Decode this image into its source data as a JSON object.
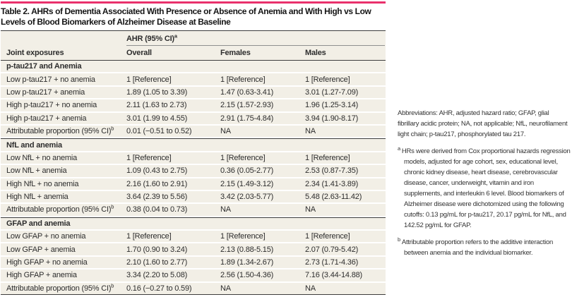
{
  "table": {
    "title": "Table 2. AHRs of Dementia Associated With Presence or Absence of Anemia and With High vs Low Levels of Blood Biomarkers of Alzheimer Disease at Baseline",
    "header": {
      "group_label": "AHR (95% CI)",
      "group_sup": "a",
      "col1": "Joint exposures",
      "columns": [
        "Overall",
        "Females",
        "Males"
      ]
    },
    "sections": [
      {
        "name": "p-tau217 and Anemia",
        "rows": [
          {
            "label": "Low p-tau217 + no anemia",
            "sup": "",
            "overall": "1 [Reference]",
            "females": "1 [Reference]",
            "males": "1 [Reference]"
          },
          {
            "label": "Low p-tau217 + anemia",
            "sup": "",
            "overall": "1.89 (1.05 to 3.39)",
            "females": "1.47 (0.63-3.41)",
            "males": "3.01 (1.27-7.09)"
          },
          {
            "label": "High p-tau217 + no anemia",
            "sup": "",
            "overall": "2.11 (1.63 to 2.73)",
            "females": "2.15 (1.57-2.93)",
            "males": "1.96 (1.25-3.14)"
          },
          {
            "label": "High p-tau217 + anemia",
            "sup": "",
            "overall": "3.01 (1.99 to 4.55)",
            "females": "2.91 (1.75-4.84)",
            "males": "3.94 (1.90-8.17)"
          },
          {
            "label": "Attributable proportion (95% CI)",
            "sup": "b",
            "overall": "0.01 (−0.51 to 0.52)",
            "females": "NA",
            "males": "NA"
          }
        ]
      },
      {
        "name": "NfL and anemia",
        "rows": [
          {
            "label": "Low NfL + no anemia",
            "sup": "",
            "overall": "1 [Reference]",
            "females": "1 [Reference]",
            "males": "1 [Reference]"
          },
          {
            "label": "Low NfL + anemia",
            "sup": "",
            "overall": "1.09 (0.43 to 2.75)",
            "females": "0.36 (0.05-2.77)",
            "males": "2.53 (0.87-7.35)"
          },
          {
            "label": "High NfL + no anemia",
            "sup": "",
            "overall": "2.16 (1.60 to 2.91)",
            "females": "2.15 (1.49-3.12)",
            "males": "2.34 (1.41-3.89)"
          },
          {
            "label": "High NfL + anemia",
            "sup": "",
            "overall": "3.64 (2.39 to 5.56)",
            "females": "3.42 (2.03-5.77)",
            "males": "5.48 (2.63-11.42)"
          },
          {
            "label": "Attributable proportion (95% CI)",
            "sup": "b",
            "overall": "0.38 (0.04 to 0.73)",
            "females": "NA",
            "males": "NA"
          }
        ]
      },
      {
        "name": "GFAP and anemia",
        "rows": [
          {
            "label": "Low GFAP + no anemia",
            "sup": "",
            "overall": "1 [Reference]",
            "females": "1 [Reference]",
            "males": "1 [Reference]"
          },
          {
            "label": "Low GFAP + anemia",
            "sup": "",
            "overall": "1.70 (0.90 to 3.24)",
            "females": "2.13 (0.88-5.15)",
            "males": "2.07 (0.79-5.42)"
          },
          {
            "label": "High GFAP + no anemia",
            "sup": "",
            "overall": "2.10 (1.60 to 2.77)",
            "females": "1.89 (1.34-2.67)",
            "males": "2.73 (1.71-4.36)"
          },
          {
            "label": "High GFAP + anemia",
            "sup": "",
            "overall": "3.34 (2.20 to 5.08)",
            "females": "2.56 (1.50-4.36)",
            "males": "7.16 (3.44-14.88)"
          },
          {
            "label": "Attributable proportion (95% CI)",
            "sup": "b",
            "overall": "0.16 (−0.27 to 0.59)",
            "females": "NA",
            "males": "NA"
          }
        ]
      }
    ]
  },
  "notes": {
    "abbreviations": "Abbreviations: AHR, adjusted hazard ratio; GFAP, glial fibrillary acidic protein; NA, not applicable; NfL, neurofilament light chain; p-tau217, phosphorylated tau 217.",
    "footnotes": [
      {
        "marker": "a",
        "text": "HRs were derived from Cox proportional hazards regression models, adjusted for age cohort, sex, educational level, chronic kidney disease, heart disease, cerebrovascular disease, cancer, underweight, vitamin and iron supplements, and interleukin 6 level. Blood biomarkers of Alzheimer disease were dichotomized using the following cutoffs: 0.13 pg/mL for p-tau217, 20.17 pg/mL for NfL, and 142.52 pg/mL for GFAP."
      },
      {
        "marker": "b",
        "text": "Attributable proportion refers to the additive interaction between anemia and the individual biomarker."
      }
    ]
  },
  "colors": {
    "accent_rule": "#e9316c",
    "row_beige": "#f2efe6",
    "dark_rule": "#3d3d3d",
    "header_underline": "#8f8f8f",
    "text": "#2d2d2d"
  }
}
